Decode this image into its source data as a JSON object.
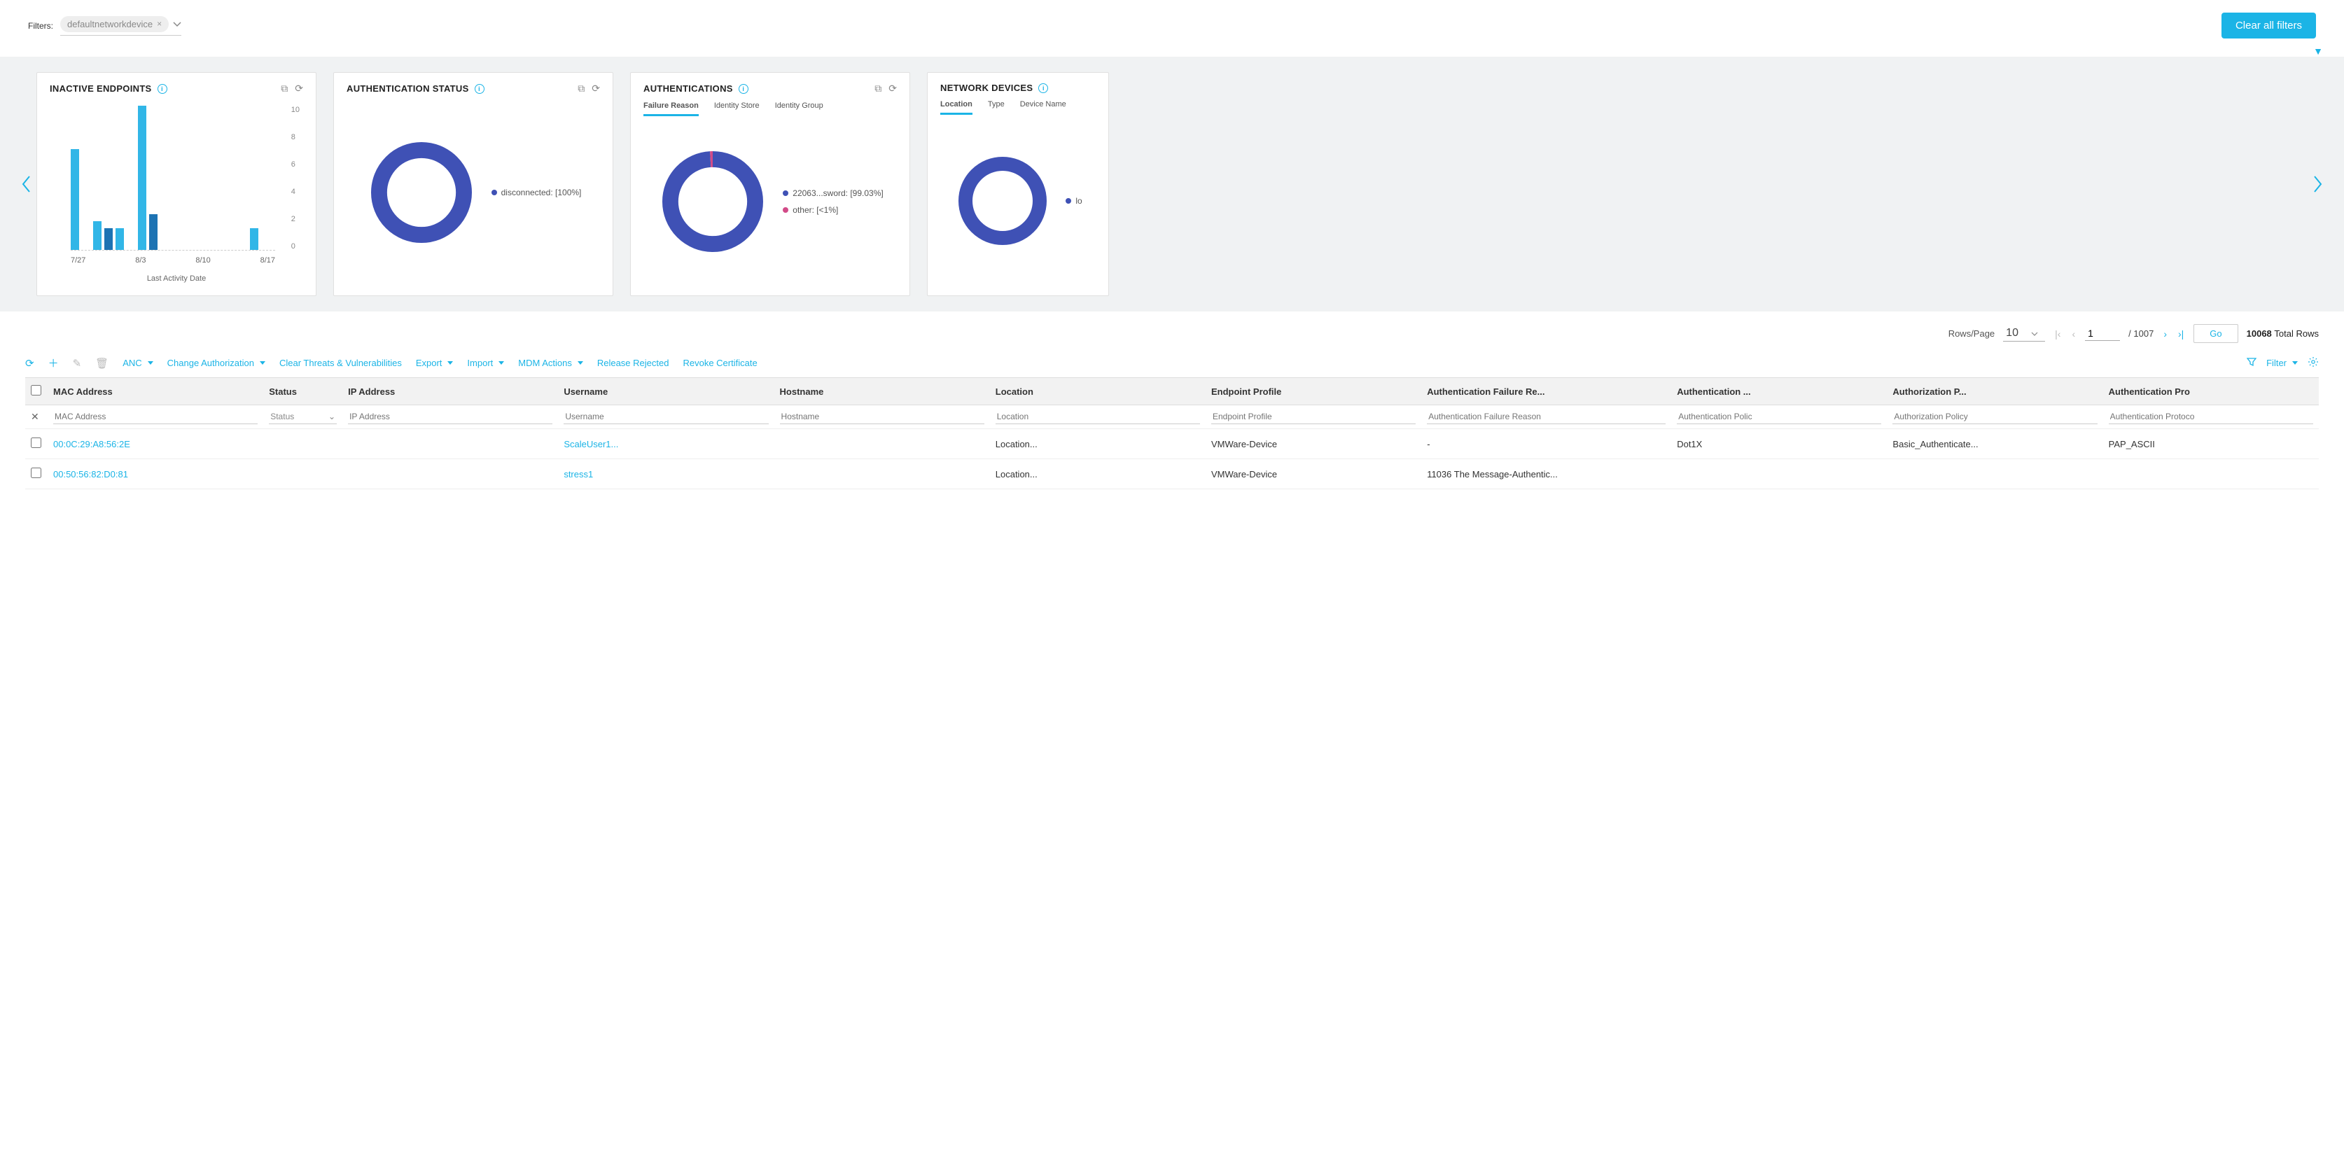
{
  "colors": {
    "accent": "#1bb4e6",
    "donut_primary": "#3f51b5",
    "donut_secondary": "#d24b88",
    "bar_light": "#31b6e7",
    "bar_dark": "#1d73b3",
    "bg_strip": "#f0f2f3"
  },
  "filters": {
    "label": "Filters:",
    "chip": "defaultnetworkdevice",
    "clear_button": "Clear all filters"
  },
  "cards": {
    "inactive": {
      "title": "INACTIVE ENDPOINTS",
      "x_title": "Last Activity Date",
      "y_ticks": [
        "10",
        "8",
        "6",
        "4",
        "2",
        "0"
      ],
      "x_ticks": [
        "7/27",
        "8/3",
        "8/10",
        "8/17"
      ],
      "bars": [
        {
          "h": 70,
          "c": "#31b6e7"
        },
        {
          "h": 0,
          "c": "#31b6e7"
        },
        {
          "h": 20,
          "c": "#31b6e7"
        },
        {
          "h": 15,
          "c": "#1d73b3"
        },
        {
          "h": 15,
          "c": "#31b6e7"
        },
        {
          "h": 0,
          "c": "#31b6e7"
        },
        {
          "h": 100,
          "c": "#31b6e7"
        },
        {
          "h": 25,
          "c": "#1d73b3"
        },
        {
          "h": 0,
          "c": "#31b6e7"
        },
        {
          "h": 0,
          "c": "#31b6e7"
        },
        {
          "h": 0,
          "c": "#31b6e7"
        },
        {
          "h": 0,
          "c": "#31b6e7"
        },
        {
          "h": 0,
          "c": "#31b6e7"
        },
        {
          "h": 0,
          "c": "#31b6e7"
        },
        {
          "h": 0,
          "c": "#31b6e7"
        },
        {
          "h": 0,
          "c": "#31b6e7"
        },
        {
          "h": 15,
          "c": "#31b6e7"
        }
      ]
    },
    "auth_status": {
      "title": "AUTHENTICATION STATUS",
      "legend": [
        {
          "label": "disconnected: [100%]",
          "color": "#3f51b5",
          "pct": 100
        }
      ]
    },
    "authentications": {
      "title": "AUTHENTICATIONS",
      "tabs": [
        "Failure Reason",
        "Identity Store",
        "Identity Group"
      ],
      "active_tab": 0,
      "legend": [
        {
          "label": "22063...sword: [99.03%]",
          "color": "#3f51b5",
          "pct": 99.03
        },
        {
          "label": "other: [<1%]",
          "color": "#d24b88",
          "pct": 0.97
        }
      ]
    },
    "network_devices": {
      "title": "NETWORK DEVICES",
      "tabs": [
        "Location",
        "Type",
        "Device Name"
      ],
      "active_tab": 0,
      "legend": [
        {
          "label": "lo",
          "color": "#3f51b5",
          "pct": 100
        }
      ]
    }
  },
  "pager": {
    "rows_page_label": "Rows/Page",
    "rows_per_page": "10",
    "current_page": "1",
    "total_pages_label": "/ 1007",
    "go_label": "Go",
    "total_rows": "10068",
    "total_rows_label": "Total Rows"
  },
  "toolbar": {
    "anc": "ANC",
    "change_auth": "Change Authorization",
    "clear_threats": "Clear Threats & Vulnerabilities",
    "export": "Export",
    "import": "Import",
    "mdm": "MDM Actions",
    "release": "Release Rejected",
    "revoke": "Revoke Certificate",
    "filter": "Filter"
  },
  "table": {
    "headers": [
      "MAC Address",
      "Status",
      "IP Address",
      "Username",
      "Hostname",
      "Location",
      "Endpoint Profile",
      "Authentication Failure Re...",
      "Authentication ...",
      "Authorization P...",
      "Authentication Pro"
    ],
    "filter_placeholders": [
      "MAC Address",
      "Status",
      "IP Address",
      "Username",
      "Hostname",
      "Location",
      "Endpoint Profile",
      "Authentication Failure Reason",
      "Authentication Polic",
      "Authorization Policy",
      "Authentication Protoco"
    ],
    "rows": [
      {
        "mac": "00:0C:29:A8:56:2E",
        "status": "",
        "ip": "",
        "user": "ScaleUser1...",
        "host": "",
        "loc": "Location...",
        "profile": "VMWare-Device",
        "fail": "-",
        "apolicy": "Dot1X",
        "azpolicy": "Basic_Authenticate...",
        "proto": "PAP_ASCII"
      },
      {
        "mac": "00:50:56:82:D0:81",
        "status": "",
        "ip": "",
        "user": "stress1",
        "host": "",
        "loc": "Location...",
        "profile": "VMWare-Device",
        "fail": "11036 The Message-Authentic...",
        "apolicy": "",
        "azpolicy": "",
        "proto": ""
      }
    ]
  }
}
